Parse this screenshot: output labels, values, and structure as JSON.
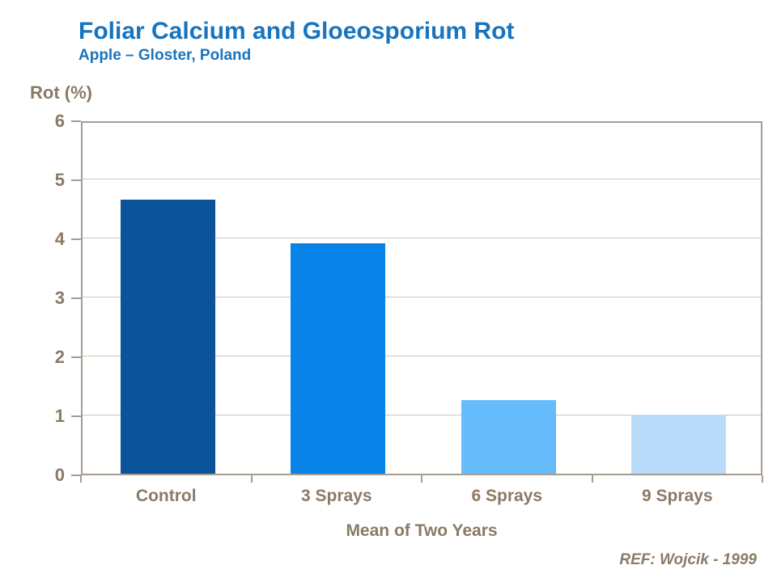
{
  "header": {
    "title": "Foliar Calcium and Gloeosporium Rot",
    "subtitle": "Apple – Gloster,  Poland"
  },
  "chart_data": {
    "type": "bar",
    "title": "Foliar Calcium and Gloeosporium Rot",
    "subtitle": "Apple – Gloster,  Poland",
    "ylabel": "Rot (%)",
    "xlabel": "Mean of Two Years",
    "categories": [
      "Control",
      "3 Sprays",
      "6 Sprays",
      "9 Sprays"
    ],
    "values": [
      4.65,
      3.9,
      1.25,
      1.0
    ],
    "ylim": [
      0,
      6
    ],
    "yticks": [
      0,
      1,
      2,
      3,
      4,
      5,
      6
    ],
    "grid": true,
    "legend": "none",
    "bar_colors": [
      "#0B5499",
      "#0884E9",
      "#66BBFB",
      "#B9DCFB"
    ]
  },
  "footer": {
    "reference": "REF: Wojcik - 1999"
  },
  "colors": {
    "title_blue": "#1874BE",
    "axis_text": "#8A7A66",
    "frame": "#A69C90",
    "gridline": "#CDC6BD"
  }
}
